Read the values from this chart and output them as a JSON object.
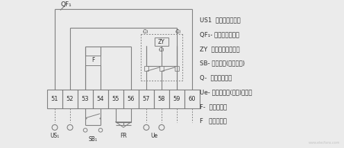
{
  "bg_color": "#ebebeb",
  "line_color": "#7a7a7a",
  "text_color": "#2a2a2a",
  "terminal_numbers": [
    "51",
    "52",
    "53",
    "54",
    "55",
    "56",
    "57",
    "58",
    "59",
    "60"
  ],
  "legend_lines": [
    "US1  分助脱扣器电源",
    "QF₁- 断路器辅助触头",
    "ZY  欠电压阔容延时器",
    "SB- 分助按鈕(用户自备)",
    "Q-  欠电压脱扣器",
    "Ue- 欠电压瞬时(延时)脱扣器",
    "F-  分功脱扣器",
    "F   连锁脱扣器"
  ],
  "green_label": "(绿)",
  "red_label": "(红)",
  "yellow_label": "(黄)",
  "qf1_label": "QF₁",
  "zy_label": "ZY",
  "us1_label": "US₁",
  "sb1_label": "SB₁",
  "fr_label": "FR",
  "ue_label": "Ue",
  "watermark": "www.elecfans.com"
}
